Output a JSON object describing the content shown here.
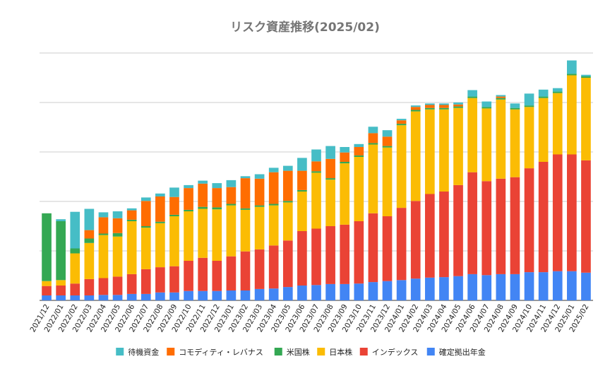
{
  "chart_data": {
    "type": "stacked_bar",
    "title": "リスク資産推移(2025/02)",
    "categories": [
      "2021/12",
      "2022/01",
      "2022/02",
      "2022/03",
      "2022/04",
      "2022/05",
      "2022/06",
      "2022/07",
      "2022/08",
      "2022/09",
      "2022/10",
      "2022/11",
      "2022/12",
      "2023/01",
      "2023/02",
      "2023/03",
      "2023/04",
      "2023/05",
      "2023/06",
      "2023/07",
      "2023/08",
      "2023/09",
      "2023/10",
      "2023/11",
      "2023/12",
      "2024/01",
      "2024/02",
      "2024/03",
      "2024/04",
      "2024/05",
      "2024/06",
      "2024/07",
      "2024/08",
      "2024/09",
      "2024/10",
      "2024/11",
      "2024/12",
      "2025/01",
      "2025/02"
    ],
    "series": [
      {
        "name": "確定拠出年金",
        "color": "#4285f4",
        "values": [
          0.1,
          0.1,
          0.1,
          0.1,
          0.11,
          0.11,
          0.13,
          0.13,
          0.16,
          0.16,
          0.19,
          0.19,
          0.19,
          0.2,
          0.2,
          0.23,
          0.24,
          0.27,
          0.3,
          0.31,
          0.33,
          0.33,
          0.34,
          0.37,
          0.39,
          0.41,
          0.44,
          0.46,
          0.47,
          0.49,
          0.53,
          0.51,
          0.53,
          0.53,
          0.57,
          0.57,
          0.59,
          0.59,
          0.56
        ]
      },
      {
        "name": "インデックス",
        "color": "#ea4335",
        "values": [
          0.19,
          0.2,
          0.24,
          0.33,
          0.34,
          0.37,
          0.4,
          0.5,
          0.51,
          0.53,
          0.61,
          0.67,
          0.61,
          0.69,
          0.79,
          0.8,
          0.87,
          0.94,
          1.1,
          1.14,
          1.17,
          1.2,
          1.26,
          1.39,
          1.31,
          1.46,
          1.57,
          1.69,
          1.73,
          1.84,
          2.06,
          1.9,
          1.93,
          1.96,
          2.1,
          2.23,
          2.36,
          2.36,
          2.27
        ]
      },
      {
        "name": "日本株",
        "color": "#fbbc04",
        "values": [
          0.1,
          0.11,
          0.61,
          0.73,
          0.87,
          0.81,
          1.07,
          0.84,
          0.89,
          1.01,
          1.0,
          0.99,
          1.04,
          1.03,
          0.84,
          0.86,
          0.81,
          0.77,
          0.8,
          1.13,
          0.94,
          1.24,
          1.3,
          1.39,
          1.39,
          1.67,
          1.81,
          1.71,
          1.66,
          1.56,
          1.5,
          1.47,
          1.6,
          1.37,
          1.24,
          1.29,
          1.24,
          1.6,
          1.67
        ]
      },
      {
        "name": "米国株",
        "color": "#34a853",
        "values": [
          1.37,
          1.19,
          0.1,
          0.09,
          0.03,
          0.07,
          0.03,
          0.03,
          0.03,
          0.03,
          0.03,
          0.04,
          0.04,
          0.03,
          0.03,
          0.03,
          0.03,
          0.03,
          0.03,
          0.03,
          0.03,
          0.03,
          0.03,
          0.03,
          0.03,
          0.03,
          0.03,
          0.03,
          0.03,
          0.03,
          0.03,
          0.03,
          0.03,
          0.03,
          0.03,
          0.03,
          0.03,
          0.03,
          0.03
        ]
      },
      {
        "name": "コモディティ・レバナス",
        "color": "#ff6d01",
        "values": [
          0,
          0,
          0,
          0.17,
          0.33,
          0.3,
          0.19,
          0.51,
          0.51,
          0.36,
          0.44,
          0.47,
          0.39,
          0.34,
          0.61,
          0.54,
          0.64,
          0.61,
          0.39,
          0.2,
          0.39,
          0.19,
          0.17,
          0.2,
          0.19,
          0.07,
          0.06,
          0.06,
          0.06,
          0.04,
          0,
          0,
          0.03,
          0,
          0,
          0,
          0,
          0,
          0
        ]
      },
      {
        "name": "待機資金",
        "color": "#46bdc6",
        "values": [
          0,
          0.04,
          0.74,
          0.43,
          0.1,
          0.14,
          0.04,
          0.07,
          0.06,
          0.19,
          0.06,
          0.06,
          0.1,
          0.14,
          0.04,
          0.09,
          0.09,
          0.1,
          0.26,
          0.24,
          0.26,
          0.11,
          0.06,
          0.13,
          0.13,
          0.03,
          0.03,
          0.03,
          0.03,
          0.04,
          0.13,
          0.11,
          0.03,
          0.09,
          0.24,
          0.14,
          0.07,
          0.27,
          0.03
        ]
      }
    ],
    "ylim": [
      0,
      5
    ],
    "yticks": [
      0,
      1,
      2,
      3,
      4,
      5
    ],
    "ytick_labels": false,
    "grid": true
  }
}
